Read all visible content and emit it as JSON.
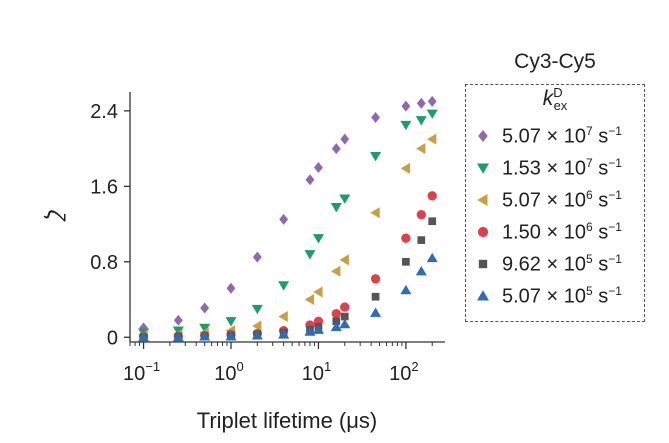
{
  "chart_data": {
    "type": "scatter",
    "xlabel": "Triplet lifetime (μs)",
    "ylabel": "ζ",
    "xscale": "log",
    "xlim": [
      0.07,
      280
    ],
    "ylim": [
      -0.05,
      2.6
    ],
    "x_ticks": [
      {
        "value": 0.1,
        "label": "10",
        "exp": "−1"
      },
      {
        "value": 1,
        "label": "10",
        "exp": "0"
      },
      {
        "value": 10,
        "label": "10",
        "exp": "1"
      },
      {
        "value": 100,
        "label": "10",
        "exp": "2"
      }
    ],
    "y_ticks": [
      {
        "value": 0,
        "label": "0"
      },
      {
        "value": 0.8,
        "label": "0.8"
      },
      {
        "value": 1.6,
        "label": "1.6"
      },
      {
        "value": 2.4,
        "label": "2.4"
      }
    ],
    "grid": false,
    "legend_title": "Cy3-Cy5",
    "legend_subtitle": {
      "base": "k",
      "sup": "D",
      "sub": "ex"
    },
    "legend_placement": "right",
    "x": [
      0.1,
      0.25,
      0.5,
      1,
      2,
      4,
      8,
      10,
      16,
      20,
      45,
      100,
      150,
      200
    ],
    "series": [
      {
        "name": "5.07 × 10",
        "exp": "7",
        "unit": " s",
        "unit_exp": "−1",
        "marker": "diamond",
        "color": "#8e6aad",
        "y": [
          0.1,
          0.18,
          0.31,
          0.52,
          0.85,
          1.25,
          1.67,
          1.8,
          2.0,
          2.1,
          2.33,
          2.45,
          2.48,
          2.5
        ]
      },
      {
        "name": "1.53 × 10",
        "exp": "7",
        "unit": " s",
        "unit_exp": "−1",
        "marker": "triangle-down",
        "color": "#1a9e6c",
        "y": [
          0.05,
          0.07,
          0.1,
          0.17,
          0.3,
          0.55,
          0.88,
          1.05,
          1.38,
          1.47,
          1.92,
          2.25,
          2.3,
          2.37
        ]
      },
      {
        "name": "5.07 × 10",
        "exp": "6",
        "unit": " s",
        "unit_exp": "−1",
        "marker": "triangle-left",
        "color": "#c8a040",
        "y": [
          0.02,
          0.03,
          0.05,
          0.07,
          0.12,
          0.22,
          0.4,
          0.48,
          0.7,
          0.82,
          1.32,
          1.79,
          2.0,
          2.1
        ]
      },
      {
        "name": "1.50 × 10",
        "exp": "6",
        "unit": " s",
        "unit_exp": "−1",
        "marker": "circle",
        "color": "#e0404a",
        "y": [
          0.01,
          0.01,
          0.02,
          0.03,
          0.04,
          0.07,
          0.13,
          0.17,
          0.25,
          0.32,
          0.62,
          1.05,
          1.3,
          1.5
        ]
      },
      {
        "name": "9.62 × 10",
        "exp": "5",
        "unit": " s",
        "unit_exp": "−1",
        "marker": "square",
        "color": "#555555",
        "y": [
          0.0,
          0.01,
          0.01,
          0.02,
          0.03,
          0.05,
          0.08,
          0.11,
          0.17,
          0.22,
          0.43,
          0.8,
          1.03,
          1.23
        ]
      },
      {
        "name": "5.07 × 10",
        "exp": "5",
        "unit": " s",
        "unit_exp": "−1",
        "marker": "triangle-up",
        "color": "#2d6db8",
        "y": [
          0.0,
          0.0,
          0.01,
          0.01,
          0.02,
          0.03,
          0.06,
          0.08,
          0.11,
          0.14,
          0.26,
          0.5,
          0.7,
          0.84
        ]
      }
    ]
  }
}
